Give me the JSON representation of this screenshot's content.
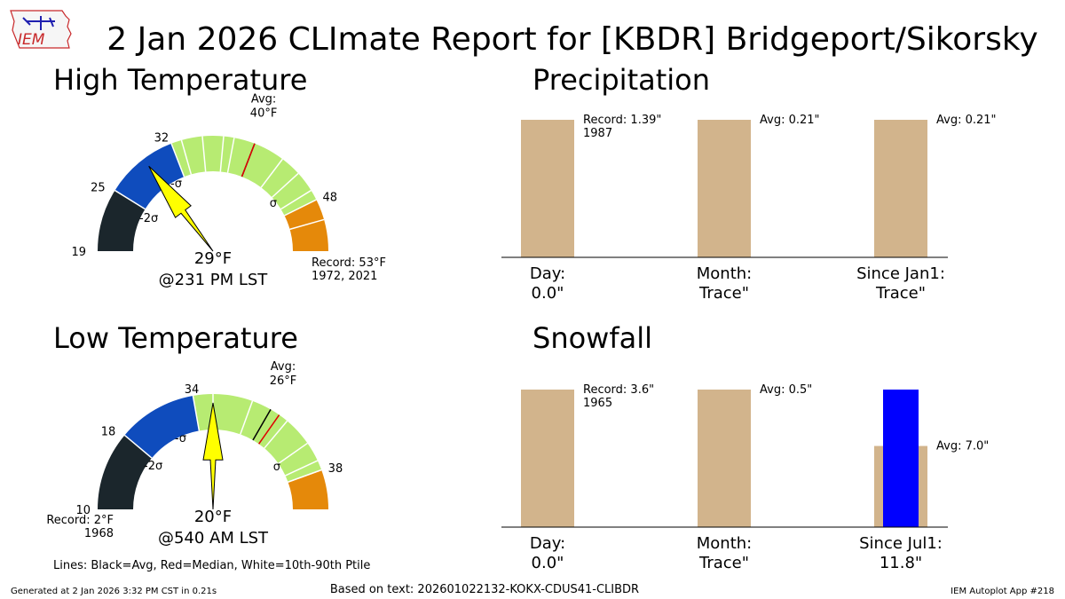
{
  "title": "2 Jan 2026 CLImate Report for [KBDR] Bridgeport/Sikorsky",
  "logo_text": "IEM",
  "footer": {
    "left": "Generated at 2 Jan 2026 3:32 PM CST in 0.21s",
    "center": "Based on text: 202601022132-KOKX-CDUS41-CLIBDR",
    "right": "IEM Autoplot App #218"
  },
  "legend_note": "Lines: Black=Avg, Red=Median, White=10th-90th Ptile",
  "colors": {
    "below_2sigma": "#1b262c",
    "sigma_band": "#0f4cbd",
    "normal": "#b7eb72",
    "plus_sigma": "#e5890a",
    "bar_tan": "#d2b48c",
    "snow_blue": "#0000ff",
    "median": "#e00000",
    "needle": "#ffff00"
  },
  "chart_data": [
    {
      "type": "gauge",
      "title": "High Temperature",
      "min": 19,
      "max": 53,
      "minus2sigma": 25,
      "minus1sigma": 32,
      "plus1sigma": 48,
      "avg": 40,
      "median": 40,
      "percentiles": [
        33,
        35,
        37,
        38,
        40,
        43,
        45,
        47,
        50
      ],
      "value": 29,
      "tick_labels": [
        "19",
        "25",
        "32",
        "48"
      ],
      "sigma_labels": [
        "-2σ",
        "-σ",
        "σ"
      ],
      "avg_label": "Avg:\n40°F",
      "value_label": "29°F",
      "time_label": "@231 PM LST",
      "record_label": "Record: 53°F\n1972, 2021"
    },
    {
      "type": "gauge",
      "title": "Low Temperature",
      "min": 2,
      "max": 38,
      "minus2sigma": 10,
      "minus1sigma": 18,
      "plus1sigma": 34,
      "avg": 26,
      "median": 27,
      "percentiles": [
        20,
        24,
        28,
        31,
        33,
        34
      ],
      "value": 20,
      "tick_labels": [
        "10",
        "18",
        "34",
        "38"
      ],
      "sigma_labels": [
        "-2σ",
        "-σ",
        "σ"
      ],
      "avg_label": "Avg:\n26°F",
      "value_label": "20°F",
      "time_label": "@540 AM LST",
      "record_label": "Record: 2°F\n1968"
    },
    {
      "type": "bar",
      "title": "Precipitation",
      "categories": [
        "Day:\n0.0\"",
        "Month:\nTrace\"",
        "Since Jan1:\nTrace\""
      ],
      "reference_values": [
        1.39,
        0.21,
        0.21
      ],
      "reference_labels": [
        "Record: 1.39\"\n1987",
        "Avg: 0.21\"",
        "Avg: 0.21\""
      ],
      "normalized_reference": [
        1.0,
        1.0,
        1.0
      ],
      "observed_normalized": [
        0,
        0,
        0
      ]
    },
    {
      "type": "bar",
      "title": "Snowfall",
      "categories": [
        "Day:\n0.0\"",
        "Month:\nTrace\"",
        "Since Jul1:\n11.8\""
      ],
      "reference_values": [
        3.6,
        0.5,
        7.0
      ],
      "reference_labels": [
        "Record: 3.6\"\n1965",
        "Avg: 0.5\"",
        "Avg: 7.0\""
      ],
      "normalized_reference": [
        1.0,
        1.0,
        0.59
      ],
      "observed_normalized": [
        0,
        0,
        1.0
      ]
    }
  ]
}
